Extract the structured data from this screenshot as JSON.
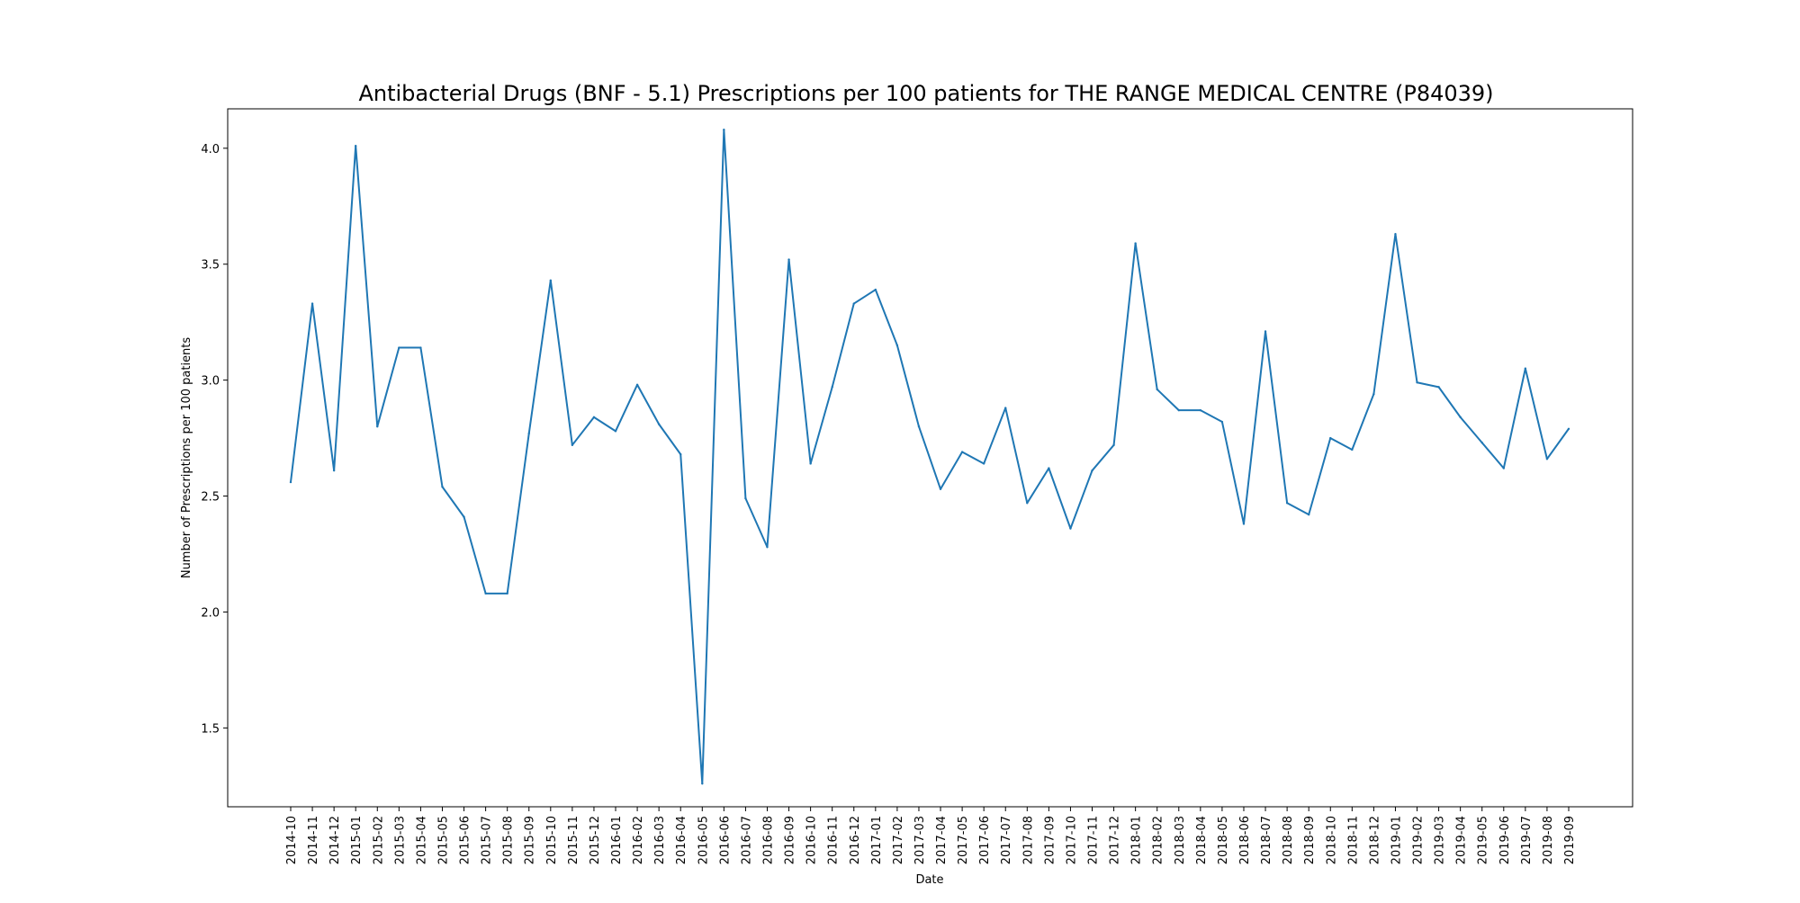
{
  "chart_data": {
    "type": "line",
    "title": "Antibacterial Drugs (BNF - 5.1) Prescriptions per 100 patients for THE RANGE MEDICAL CENTRE (P84039)",
    "xlabel": "Date",
    "ylabel": "Number of Prescriptions per 100 patients",
    "ylim": [
      1.16,
      4.17
    ],
    "yticks": [
      1.5,
      2.0,
      2.5,
      3.0,
      3.5,
      4.0
    ],
    "grid": false,
    "legend": "none",
    "line_color": "#1f77b4",
    "categories": [
      "2014-10",
      "2014-11",
      "2014-12",
      "2015-01",
      "2015-02",
      "2015-03",
      "2015-04",
      "2015-05",
      "2015-06",
      "2015-07",
      "2015-08",
      "2015-09",
      "2015-10",
      "2015-11",
      "2015-12",
      "2016-01",
      "2016-02",
      "2016-03",
      "2016-04",
      "2016-05",
      "2016-06",
      "2016-07",
      "2016-08",
      "2016-09",
      "2016-10",
      "2016-11",
      "2016-12",
      "2017-01",
      "2017-02",
      "2017-03",
      "2017-04",
      "2017-05",
      "2017-06",
      "2017-07",
      "2017-08",
      "2017-09",
      "2017-10",
      "2017-11",
      "2017-12",
      "2018-01",
      "2018-02",
      "2018-03",
      "2018-04",
      "2018-05",
      "2018-06",
      "2018-07",
      "2018-08",
      "2018-09",
      "2018-10",
      "2018-11",
      "2018-12",
      "2019-01",
      "2019-02",
      "2019-03",
      "2019-04",
      "2019-05",
      "2019-06",
      "2019-07",
      "2019-08",
      "2019-09"
    ],
    "series": [
      {
        "values": [
          2.56,
          3.33,
          2.61,
          4.01,
          2.8,
          3.14,
          3.14,
          2.54,
          2.41,
          2.08,
          2.08,
          2.77,
          3.43,
          2.72,
          2.84,
          2.78,
          2.98,
          2.81,
          2.68,
          1.26,
          4.08,
          2.49,
          2.28,
          3.52,
          2.64,
          2.97,
          3.33,
          3.39,
          3.15,
          2.8,
          2.53,
          2.69,
          2.64,
          2.88,
          2.47,
          2.62,
          2.36,
          2.61,
          2.72,
          3.59,
          2.96,
          2.87,
          2.87,
          2.82,
          2.38,
          3.21,
          2.47,
          2.42,
          2.75,
          2.7,
          2.94,
          3.63,
          2.99,
          2.97,
          2.84,
          2.73,
          2.62,
          3.05,
          2.66,
          2.79
        ]
      }
    ]
  }
}
